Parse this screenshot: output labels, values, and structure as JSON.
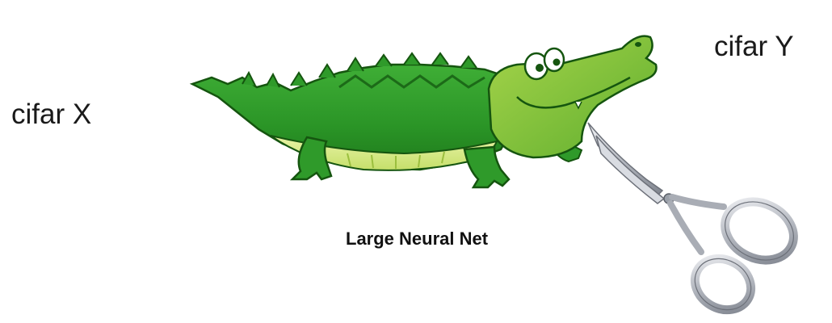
{
  "labels": {
    "input": "cifar X",
    "output": "cifar Y",
    "caption": "Large Neural Net"
  },
  "illustration": {
    "animal": "crocodile-illustration",
    "tool": "scissors-icon"
  },
  "colors": {
    "croc_body": "#2e9c2a",
    "croc_dark": "#1c6a18",
    "croc_belly": "#d6e98a",
    "croc_head": "#8cc63f",
    "scissors_metal": "#b8bcc4",
    "text": "#1a1a1a"
  }
}
